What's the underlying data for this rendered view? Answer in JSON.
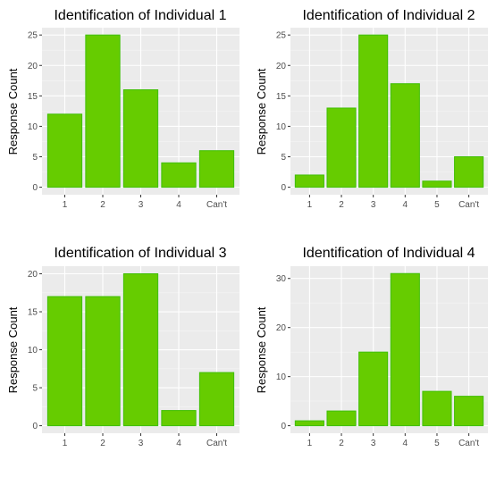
{
  "colors": {
    "panel": "#ebebeb",
    "grid_major": "#ffffff",
    "grid_minor": "#f5f5f5",
    "bar_fill": "#66cc00",
    "bar_stroke": "#3fbf00",
    "tick_text": "#4d4d4d",
    "tick_mark": "#333333"
  },
  "chart_data": [
    {
      "type": "bar",
      "title": "Identification of Individual 1",
      "ylabel": "Response Count",
      "xlabel": "",
      "categories": [
        "1",
        "2",
        "3",
        "4",
        "Can't"
      ],
      "values": [
        12,
        25,
        16,
        4,
        6
      ],
      "ylim": [
        0,
        26.2
      ],
      "yticks": [
        0,
        5,
        10,
        15,
        20,
        25
      ],
      "grid": true
    },
    {
      "type": "bar",
      "title": "Identification of Individual 2",
      "ylabel": "Response Count",
      "xlabel": "",
      "categories": [
        "1",
        "2",
        "3",
        "4",
        "5",
        "Can't"
      ],
      "values": [
        2,
        13,
        25,
        17,
        1,
        5
      ],
      "ylim": [
        0,
        26.2
      ],
      "yticks": [
        0,
        5,
        10,
        15,
        20,
        25
      ],
      "grid": true
    },
    {
      "type": "bar",
      "title": "Identification of Individual 3",
      "ylabel": "Response Count",
      "xlabel": "",
      "categories": [
        "1",
        "2",
        "3",
        "4",
        "Can't"
      ],
      "values": [
        17,
        17,
        20,
        2,
        7
      ],
      "ylim": [
        0,
        21
      ],
      "yticks": [
        0,
        5,
        10,
        15,
        20
      ],
      "grid": true
    },
    {
      "type": "bar",
      "title": "Identification of Individual 4",
      "ylabel": "Response Count",
      "xlabel": "",
      "categories": [
        "1",
        "2",
        "3",
        "4",
        "5",
        "Can't"
      ],
      "values": [
        1,
        3,
        15,
        31,
        7,
        6
      ],
      "ylim": [
        0,
        32.5
      ],
      "yticks": [
        0,
        10,
        20,
        30
      ],
      "grid": true
    }
  ]
}
